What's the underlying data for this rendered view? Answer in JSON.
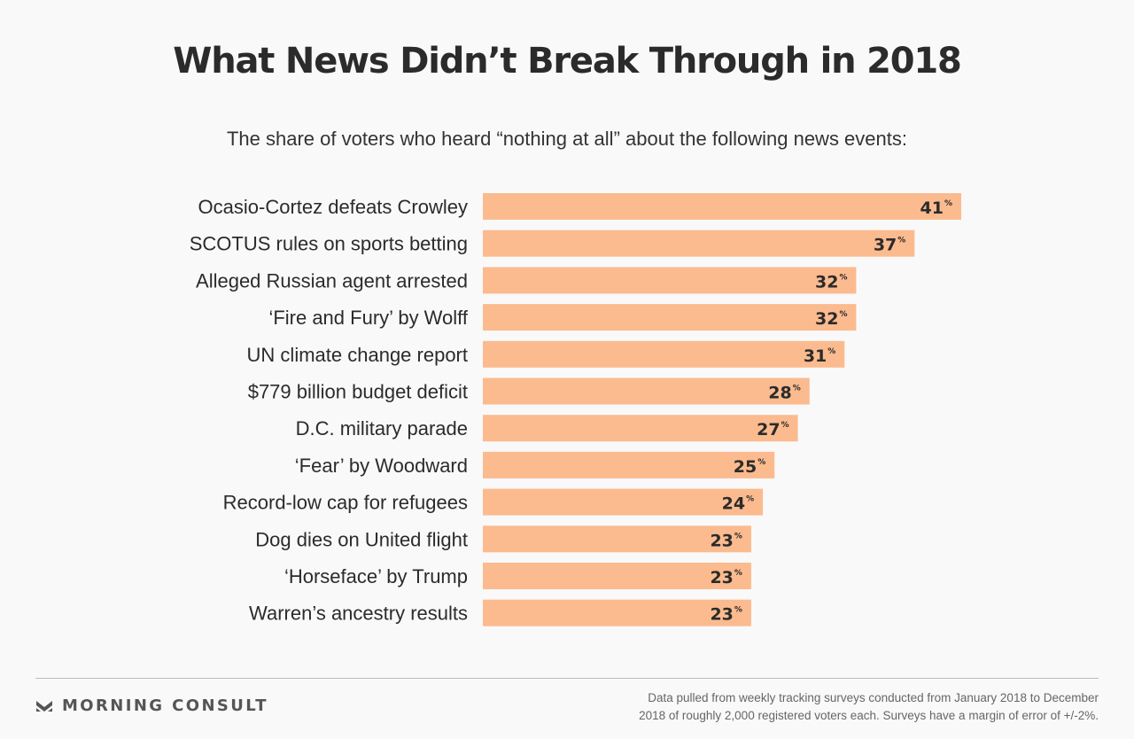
{
  "header": {
    "title": "What News Didn’t Break Through in 2018",
    "subtitle": "The share of voters who heard “nothing at all” about the following news events:"
  },
  "chart_data": {
    "type": "bar",
    "orientation": "horizontal",
    "title": "What News Didn’t Break Through in 2018",
    "subtitle": "The share of voters who heard “nothing at all” about the following news events:",
    "categories": [
      "Ocasio-Cortez defeats Crowley",
      "SCOTUS rules on sports betting",
      "Alleged Russian agent arrested",
      "‘Fire and Fury’ by Wolff",
      "UN climate change report",
      "$779 billion budget deficit",
      "D.C. military parade",
      "‘Fear’ by Woodward",
      "Record-low cap for refugees",
      "Dog dies on United flight",
      "‘Horseface’ by Trump",
      "Warren’s ancestry results"
    ],
    "values": [
      41,
      37,
      32,
      32,
      31,
      28,
      27,
      25,
      24,
      23,
      23,
      23
    ],
    "value_suffix": "%",
    "xlabel": "",
    "ylabel": "",
    "grid": false,
    "bar_color": "#fbbb8f"
  },
  "footer": {
    "brand": "MORNING CONSULT",
    "brand_icon": "morning-consult-logo-icon",
    "note_line1": "Data pulled from weekly tracking surveys conducted from January 2018 to December",
    "note_line2": "2018 of roughly 2,000 registered voters each. Surveys have a margin of error of +/-2%."
  }
}
